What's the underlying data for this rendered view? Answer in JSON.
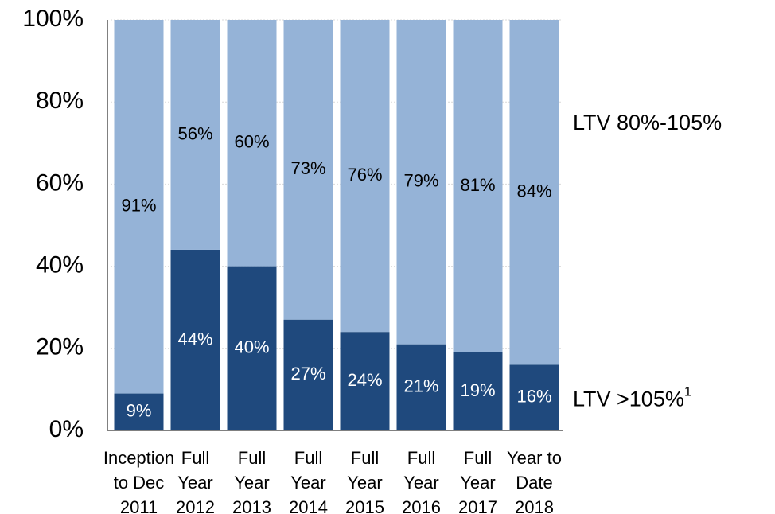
{
  "chart_data": {
    "type": "stacked_bar",
    "categories": [
      [
        "Inception",
        "to Dec",
        "2011"
      ],
      [
        "Full",
        "Year",
        "2012"
      ],
      [
        "Full",
        "Year",
        "2013"
      ],
      [
        "Full",
        "Year",
        "2014"
      ],
      [
        "Full",
        "Year",
        "2015"
      ],
      [
        "Full",
        "Year",
        "2016"
      ],
      [
        "Full",
        "Year",
        "2017"
      ],
      [
        "Year to",
        "Date",
        "2018"
      ]
    ],
    "series": [
      {
        "name": "LTV >105%",
        "footnote": "1",
        "color": "#1f497d",
        "label_color": "#ffffff",
        "values": [
          9,
          44,
          40,
          27,
          24,
          21,
          19,
          16
        ],
        "value_labels": [
          "9%",
          "44%",
          "40%",
          "27%",
          "24%",
          "21%",
          "19%",
          "16%"
        ]
      },
      {
        "name": "LTV 80%-105%",
        "color": "#95b3d7",
        "label_color": "#000000",
        "values": [
          91,
          56,
          60,
          73,
          76,
          79,
          81,
          84
        ],
        "value_labels": [
          "91%",
          "56%",
          "60%",
          "73%",
          "76%",
          "79%",
          "81%",
          "84%"
        ]
      }
    ],
    "ylim": [
      0,
      100
    ],
    "yticks": [
      {
        "value": 0,
        "label": "0%"
      },
      {
        "value": 20,
        "label": "20%"
      },
      {
        "value": 40,
        "label": "40%"
      },
      {
        "value": 60,
        "label": "60%"
      },
      {
        "value": 80,
        "label": "80%"
      },
      {
        "value": 100,
        "label": "100%"
      }
    ],
    "grid": true,
    "legend": "right"
  }
}
